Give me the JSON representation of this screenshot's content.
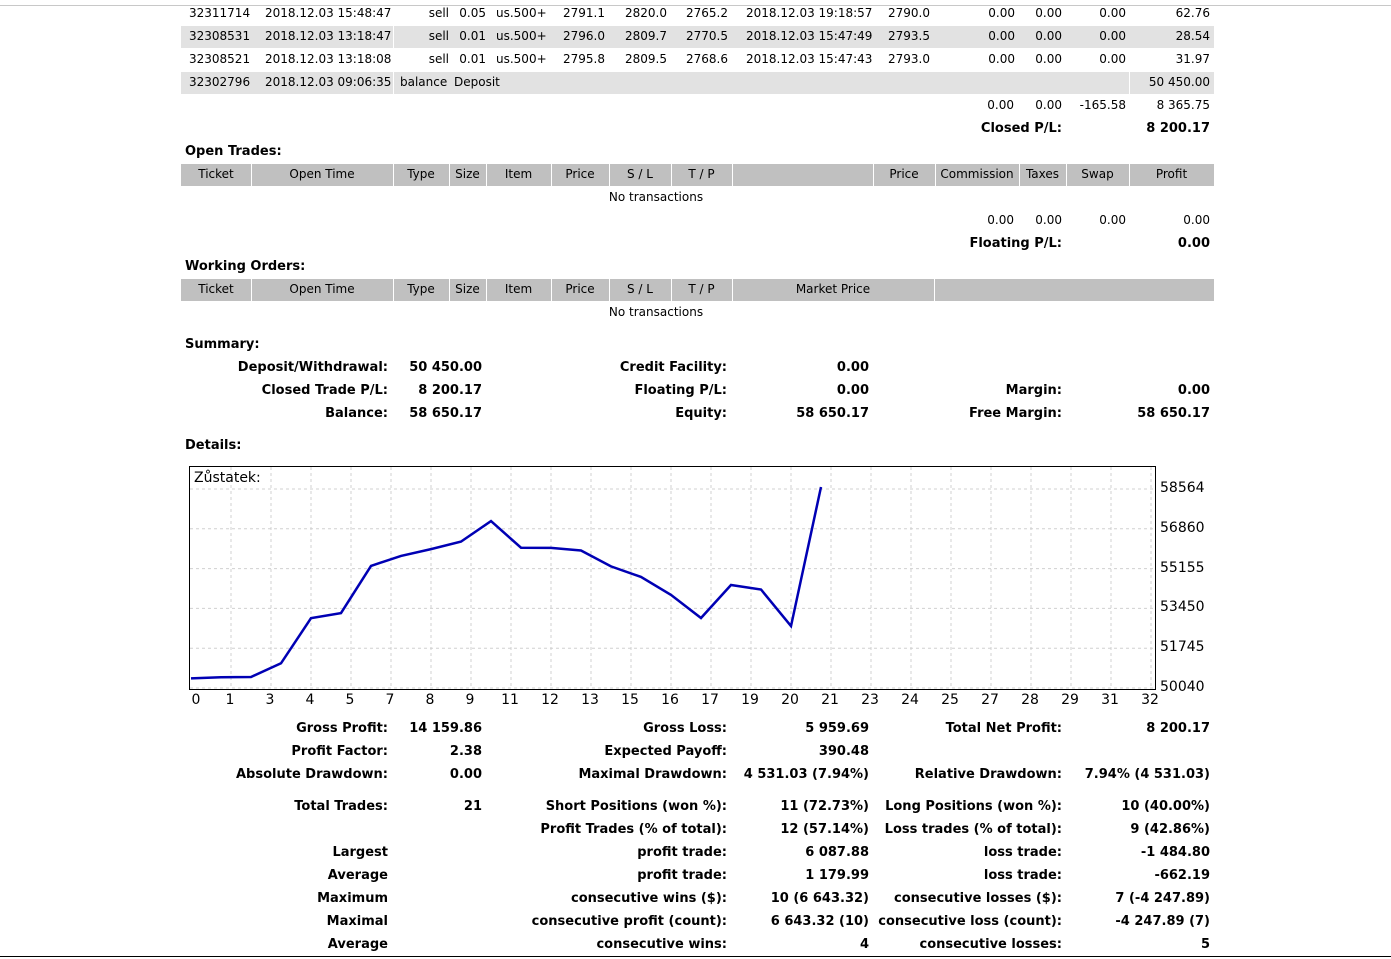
{
  "closed_rows": [
    {
      "ticket": "32311714",
      "open_time": "2018.12.03 15:48:47",
      "type": "sell",
      "size": "0.05",
      "item": "us.500+",
      "price": "2791.1",
      "sl": "2820.0",
      "tp": "2765.2",
      "close_time": "2018.12.03 19:18:57",
      "close_price": "2790.0",
      "commission": "0.00",
      "taxes": "0.00",
      "swap": "0.00",
      "profit": "62.76"
    },
    {
      "ticket": "32308531",
      "open_time": "2018.12.03 13:18:47",
      "type": "sell",
      "size": "0.01",
      "item": "us.500+",
      "price": "2796.0",
      "sl": "2809.7",
      "tp": "2770.5",
      "close_time": "2018.12.03 15:47:49",
      "close_price": "2793.5",
      "commission": "0.00",
      "taxes": "0.00",
      "swap": "0.00",
      "profit": "28.54"
    },
    {
      "ticket": "32308521",
      "open_time": "2018.12.03 13:18:08",
      "type": "sell",
      "size": "0.01",
      "item": "us.500+",
      "price": "2795.8",
      "sl": "2809.5",
      "tp": "2768.6",
      "close_time": "2018.12.03 15:47:43",
      "close_price": "2793.0",
      "commission": "0.00",
      "taxes": "0.00",
      "swap": "0.00",
      "profit": "31.97"
    }
  ],
  "balance_row": {
    "ticket": "32302796",
    "time": "2018.12.03 09:06:35",
    "type": "balance",
    "comment": "Deposit",
    "amount": "50 450.00"
  },
  "closed_totals": {
    "commission": "0.00",
    "taxes": "0.00",
    "swap": "-165.58",
    "profit": "8 365.75",
    "pl_label": "Closed P/L:",
    "pl_value": "8 200.17"
  },
  "open_trades": {
    "title": "Open Trades:",
    "headers": {
      "ticket": "Ticket",
      "open_time": "Open Time",
      "type": "Type",
      "size": "Size",
      "item": "Item",
      "price": "Price",
      "sl": "S / L",
      "tp": "T / P",
      "price2": "Price",
      "commission": "Commission",
      "taxes": "Taxes",
      "swap": "Swap",
      "profit": "Profit"
    },
    "empty": "No transactions",
    "totals": {
      "commission": "0.00",
      "taxes": "0.00",
      "swap": "0.00",
      "profit": "0.00",
      "pl_label": "Floating P/L:",
      "pl_value": "0.00"
    }
  },
  "working_orders": {
    "title": "Working Orders:",
    "headers": {
      "ticket": "Ticket",
      "open_time": "Open Time",
      "type": "Type",
      "size": "Size",
      "item": "Item",
      "price": "Price",
      "sl": "S / L",
      "tp": "T / P",
      "market_price": "Market Price"
    },
    "empty": "No transactions"
  },
  "summary": {
    "title": "Summary:",
    "deposit_label": "Deposit/Withdrawal:",
    "deposit_value": "50 450.00",
    "credit_label": "Credit Facility:",
    "credit_value": "0.00",
    "closed_label": "Closed Trade P/L:",
    "closed_value": "8 200.17",
    "floating_label": "Floating P/L:",
    "floating_value": "0.00",
    "margin_label": "Margin:",
    "margin_value": "0.00",
    "balance_label": "Balance:",
    "balance_value": "58 650.17",
    "equity_label": "Equity:",
    "equity_value": "58 650.17",
    "free_margin_label": "Free Margin:",
    "free_margin_value": "58 650.17"
  },
  "details": {
    "title": "Details:",
    "gross_profit_label": "Gross Profit:",
    "gross_profit": "14 159.86",
    "gross_loss_label": "Gross Loss:",
    "gross_loss": "5 959.69",
    "net_profit_label": "Total Net Profit:",
    "net_profit": "8 200.17",
    "profit_factor_label": "Profit Factor:",
    "profit_factor": "2.38",
    "expected_payoff_label": "Expected Payoff:",
    "expected_payoff": "390.48",
    "abs_dd_label": "Absolute Drawdown:",
    "abs_dd": "0.00",
    "max_dd_label": "Maximal Drawdown:",
    "max_dd": "4 531.03 (7.94%)",
    "rel_dd_label": "Relative Drawdown:",
    "rel_dd": "7.94% (4 531.03)",
    "total_trades_label": "Total Trades:",
    "total_trades": "21",
    "short_label": "Short Positions (won %):",
    "short": "11 (72.73%)",
    "long_label": "Long Positions (won %):",
    "long": "10 (40.00%)",
    "profit_trades_label": "Profit Trades (% of total):",
    "profit_trades": "12 (57.14%)",
    "loss_trades_label": "Loss trades (% of total):",
    "loss_trades": "9 (42.86%)",
    "largest_label": "Largest",
    "largest_profit_label": "profit trade:",
    "largest_profit": "6 087.88",
    "largest_loss_label": "loss trade:",
    "largest_loss": "-1 484.80",
    "average_label": "Average",
    "average_profit_label": "profit trade:",
    "average_profit": "1 179.99",
    "average_loss_label": "loss trade:",
    "average_loss": "-662.19",
    "maximum_label": "Maximum",
    "max_wins_label": "consecutive wins ($):",
    "max_wins": "10 (6 643.32)",
    "max_losses_label": "consecutive losses ($):",
    "max_losses": "7 (-4 247.89)",
    "maximal_label": "Maximal",
    "maximal_profit_label": "consecutive profit (count):",
    "maximal_profit": "6 643.32 (10)",
    "maximal_loss_label": "consecutive loss (count):",
    "maximal_loss": "-4 247.89 (7)",
    "average2_label": "Average",
    "avg_cons_wins_label": "consecutive wins:",
    "avg_cons_wins": "4",
    "avg_cons_losses_label": "consecutive losses:",
    "avg_cons_losses": "5"
  },
  "chart_data": {
    "type": "line",
    "title": "Zůstatek:",
    "line_color": "#0000b4",
    "grid": true,
    "x_ticks": [
      "0",
      "1",
      "3",
      "4",
      "5",
      "7",
      "8",
      "9",
      "11",
      "12",
      "13",
      "15",
      "16",
      "17",
      "19",
      "20",
      "21",
      "23",
      "24",
      "25",
      "27",
      "28",
      "29",
      "31",
      "32"
    ],
    "y_ticks": [
      "58564",
      "56860",
      "55155",
      "53450",
      "51745",
      "50040"
    ],
    "ylim": [
      50040,
      58564
    ],
    "xlim": [
      0,
      32
    ],
    "x": [
      0,
      1,
      2,
      3,
      4,
      5,
      6,
      7,
      8,
      9,
      10,
      11,
      12,
      13,
      14,
      15,
      16,
      17,
      18,
      19,
      20,
      21
    ],
    "y": [
      50450,
      50500,
      50510,
      51100,
      53030,
      53250,
      55270,
      55700,
      55990,
      56310,
      57190,
      56050,
      56040,
      55930,
      55250,
      54800,
      54030,
      53040,
      54450,
      54260,
      52690,
      58650
    ]
  }
}
